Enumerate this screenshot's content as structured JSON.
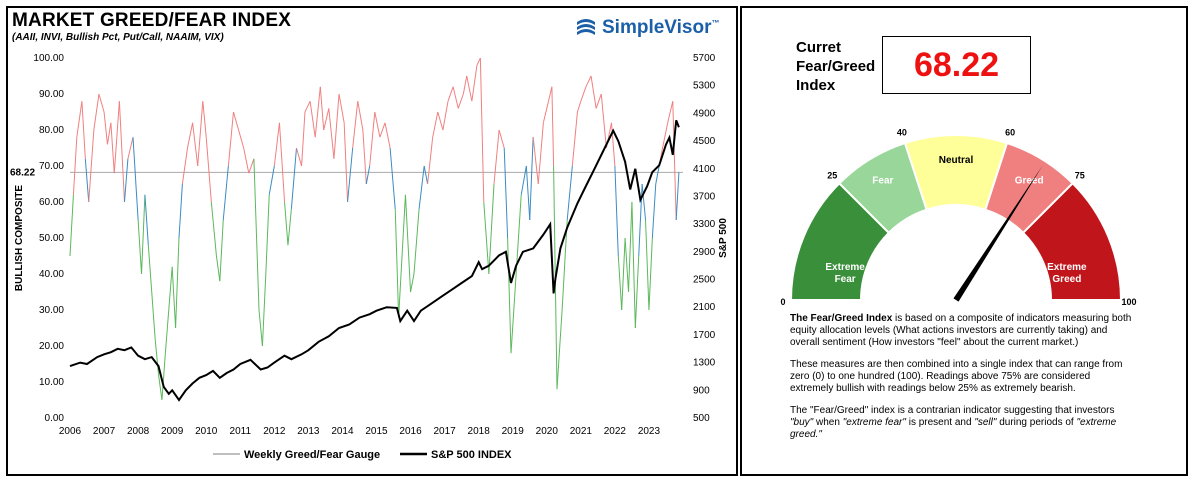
{
  "header": {
    "title": "MARKET GREED/FEAR INDEX",
    "subtitle": "(AAII, INVI, Bullish Pct, Put/Call, NAAIM, VIX)",
    "logo_text": "SimpleVisor",
    "logo_tm": "™"
  },
  "current": {
    "label_line1": "Curret",
    "label_line2": "Fear/Greed",
    "label_line3": "Index",
    "value": "68.22"
  },
  "gauge": {
    "value": 68.22,
    "segments": [
      {
        "from": 0,
        "to": 25,
        "label": [
          "Extreme",
          "Fear"
        ],
        "color": "#3a8f3a"
      },
      {
        "from": 25,
        "to": 40,
        "label": [
          "Fear"
        ],
        "color": "#99d699"
      },
      {
        "from": 40,
        "to": 60,
        "label": [
          "Neutral"
        ],
        "color": "#ffff99"
      },
      {
        "from": 60,
        "to": 75,
        "label": [
          "Greed"
        ],
        "color": "#f08080"
      },
      {
        "from": 75,
        "to": 100,
        "label": [
          "Extreme",
          "Greed"
        ],
        "color": "#c0161b"
      }
    ],
    "ticks": [
      "0",
      "25",
      "40",
      "60",
      "75",
      "100"
    ]
  },
  "description": {
    "p1_bold": "The Fear/Greed Index",
    "p1_rest": " is based on a composite of indicators measuring both equity allocation levels (What actions investors are currently taking) and overall sentiment (How investors \"feel\" about the current market.)",
    "p2": "These measures are then combined into a single index that can range from zero (0) to one hundred (100). Readings above 75% are considered extremely bullish with readings below 25% as extremely bearish.",
    "p3_a": "The \"Fear/Greed\" index is a contrarian indicator suggesting that investors ",
    "p3_b": "\"buy\"",
    "p3_c": " when ",
    "p3_d": "\"extreme fear\"",
    "p3_e": " is present and ",
    "p3_f": "\"sell\"",
    "p3_g": " during periods of ",
    "p3_h": "\"extreme greed.\""
  },
  "chart_data": {
    "type": "line",
    "ylabel": "BULLISH COMPOSITE",
    "y2label": "S&P 500",
    "ylim": [
      0,
      100
    ],
    "y2lim": [
      500,
      5700
    ],
    "y_ticks": [
      "100.00",
      "90.00",
      "80.00",
      "70.00",
      "60.00",
      "50.00",
      "40.00",
      "30.00",
      "20.00",
      "10.00",
      "0.00"
    ],
    "y2_ticks": [
      "5700",
      "5300",
      "4900",
      "4500",
      "4100",
      "3700",
      "3300",
      "2900",
      "2500",
      "2100",
      "1700",
      "1300",
      "900",
      "500"
    ],
    "x_ticks": [
      "2006",
      "2007",
      "2008",
      "2009",
      "2010",
      "2011",
      "2012",
      "2013",
      "2014",
      "2015",
      "2016",
      "2017",
      "2018",
      "2019",
      "2020",
      "2021",
      "2022",
      "2023"
    ],
    "xlim": [
      2006,
      2024
    ],
    "reference_line": {
      "value": 68.22,
      "label": "68.22"
    },
    "colors": {
      "greed": "#f08080",
      "neutral": "#3b8bc4",
      "fear": "#5cb85c",
      "sp500": "#000000",
      "reference": "#aaaaaa"
    },
    "series": [
      {
        "name": "Weekly Greed/Fear Gauge",
        "x": [
          2006.0,
          2006.1,
          2006.2,
          2006.35,
          2006.45,
          2006.55,
          2006.7,
          2006.85,
          2007.0,
          2007.1,
          2007.2,
          2007.3,
          2007.45,
          2007.6,
          2007.7,
          2007.85,
          2008.0,
          2008.1,
          2008.2,
          2008.3,
          2008.4,
          2008.5,
          2008.6,
          2008.7,
          2008.8,
          2008.9,
          2009.0,
          2009.1,
          2009.2,
          2009.3,
          2009.45,
          2009.6,
          2009.75,
          2009.9,
          2010.0,
          2010.15,
          2010.3,
          2010.4,
          2010.5,
          2010.65,
          2010.8,
          2010.95,
          2011.1,
          2011.25,
          2011.4,
          2011.55,
          2011.65,
          2011.75,
          2011.85,
          2012.0,
          2012.15,
          2012.3,
          2012.4,
          2012.5,
          2012.65,
          2012.8,
          2012.9,
          2013.05,
          2013.2,
          2013.35,
          2013.45,
          2013.6,
          2013.75,
          2013.9,
          2014.05,
          2014.15,
          2014.3,
          2014.45,
          2014.6,
          2014.7,
          2014.8,
          2014.95,
          2015.1,
          2015.25,
          2015.4,
          2015.55,
          2015.65,
          2015.75,
          2015.85,
          2016.0,
          2016.1,
          2016.25,
          2016.4,
          2016.5,
          2016.65,
          2016.8,
          2016.95,
          2017.1,
          2017.25,
          2017.4,
          2017.55,
          2017.65,
          2017.8,
          2017.95,
          2018.05,
          2018.15,
          2018.3,
          2018.45,
          2018.6,
          2018.75,
          2018.85,
          2018.95,
          2019.1,
          2019.25,
          2019.4,
          2019.5,
          2019.6,
          2019.75,
          2019.9,
          2020.05,
          2020.15,
          2020.2,
          2020.3,
          2020.45,
          2020.6,
          2020.75,
          2020.9,
          2021.0,
          2021.15,
          2021.3,
          2021.45,
          2021.6,
          2021.75,
          2021.9,
          2022.0,
          2022.1,
          2022.2,
          2022.3,
          2022.4,
          2022.5,
          2022.6,
          2022.7,
          2022.8,
          2022.9,
          2023.0,
          2023.1,
          2023.2,
          2023.3,
          2023.4,
          2023.55,
          2023.7,
          2023.8,
          2023.88
        ],
        "values": [
          45,
          62,
          78,
          88,
          72,
          60,
          80,
          90,
          85,
          76,
          82,
          68,
          88,
          60,
          72,
          78,
          55,
          40,
          62,
          48,
          35,
          22,
          12,
          5,
          18,
          30,
          42,
          25,
          50,
          65,
          75,
          82,
          70,
          88,
          78,
          60,
          45,
          38,
          55,
          70,
          85,
          80,
          75,
          68,
          72,
          30,
          20,
          40,
          62,
          70,
          82,
          60,
          48,
          58,
          75,
          70,
          85,
          88,
          78,
          92,
          80,
          86,
          72,
          90,
          82,
          60,
          75,
          88,
          80,
          65,
          70,
          85,
          78,
          82,
          75,
          58,
          28,
          45,
          62,
          35,
          40,
          58,
          70,
          65,
          78,
          85,
          80,
          88,
          92,
          86,
          90,
          95,
          88,
          98,
          100,
          60,
          40,
          65,
          80,
          75,
          50,
          18,
          40,
          62,
          70,
          55,
          78,
          65,
          82,
          88,
          92,
          70,
          8,
          30,
          55,
          70,
          85,
          88,
          92,
          95,
          86,
          90,
          75,
          82,
          70,
          45,
          30,
          50,
          35,
          60,
          25,
          45,
          65,
          55,
          30,
          50,
          65,
          70,
          75,
          82,
          88,
          55,
          68.22
        ]
      },
      {
        "name": "S&P 500 INDEX",
        "x": [
          2006.0,
          2006.3,
          2006.5,
          2006.8,
          2007.0,
          2007.2,
          2007.4,
          2007.6,
          2007.8,
          2008.0,
          2008.2,
          2008.4,
          2008.6,
          2008.75,
          2008.9,
          2009.0,
          2009.2,
          2009.4,
          2009.6,
          2009.8,
          2010.0,
          2010.2,
          2010.4,
          2010.6,
          2010.8,
          2011.0,
          2011.3,
          2011.6,
          2011.8,
          2012.0,
          2012.3,
          2012.5,
          2012.8,
          2013.0,
          2013.3,
          2013.6,
          2013.9,
          2014.2,
          2014.5,
          2014.8,
          2015.0,
          2015.3,
          2015.6,
          2015.7,
          2015.9,
          2016.1,
          2016.3,
          2016.6,
          2016.9,
          2017.2,
          2017.5,
          2017.8,
          2018.0,
          2018.1,
          2018.3,
          2018.6,
          2018.8,
          2018.95,
          2019.1,
          2019.3,
          2019.6,
          2019.9,
          2020.1,
          2020.2,
          2020.25,
          2020.4,
          2020.6,
          2020.9,
          2021.1,
          2021.4,
          2021.7,
          2021.95,
          2022.1,
          2022.3,
          2022.45,
          2022.6,
          2022.75,
          2022.95,
          2023.1,
          2023.3,
          2023.5,
          2023.6,
          2023.7,
          2023.8,
          2023.88
        ],
        "values": [
          1250,
          1300,
          1280,
          1380,
          1420,
          1450,
          1500,
          1480,
          1520,
          1400,
          1350,
          1380,
          1250,
          950,
          850,
          900,
          760,
          900,
          1000,
          1080,
          1120,
          1180,
          1080,
          1150,
          1200,
          1280,
          1340,
          1200,
          1230,
          1300,
          1400,
          1350,
          1420,
          1480,
          1600,
          1680,
          1800,
          1850,
          1950,
          2000,
          2050,
          2100,
          2090,
          1900,
          2050,
          1900,
          2050,
          2150,
          2250,
          2350,
          2450,
          2550,
          2750,
          2650,
          2700,
          2850,
          2900,
          2450,
          2700,
          2900,
          2950,
          3150,
          3300,
          2300,
          2500,
          2950,
          3250,
          3600,
          3800,
          4100,
          4400,
          4650,
          4500,
          4200,
          3800,
          4100,
          3650,
          3850,
          4050,
          4150,
          4450,
          4550,
          4300,
          4800,
          4700
        ]
      }
    ]
  }
}
